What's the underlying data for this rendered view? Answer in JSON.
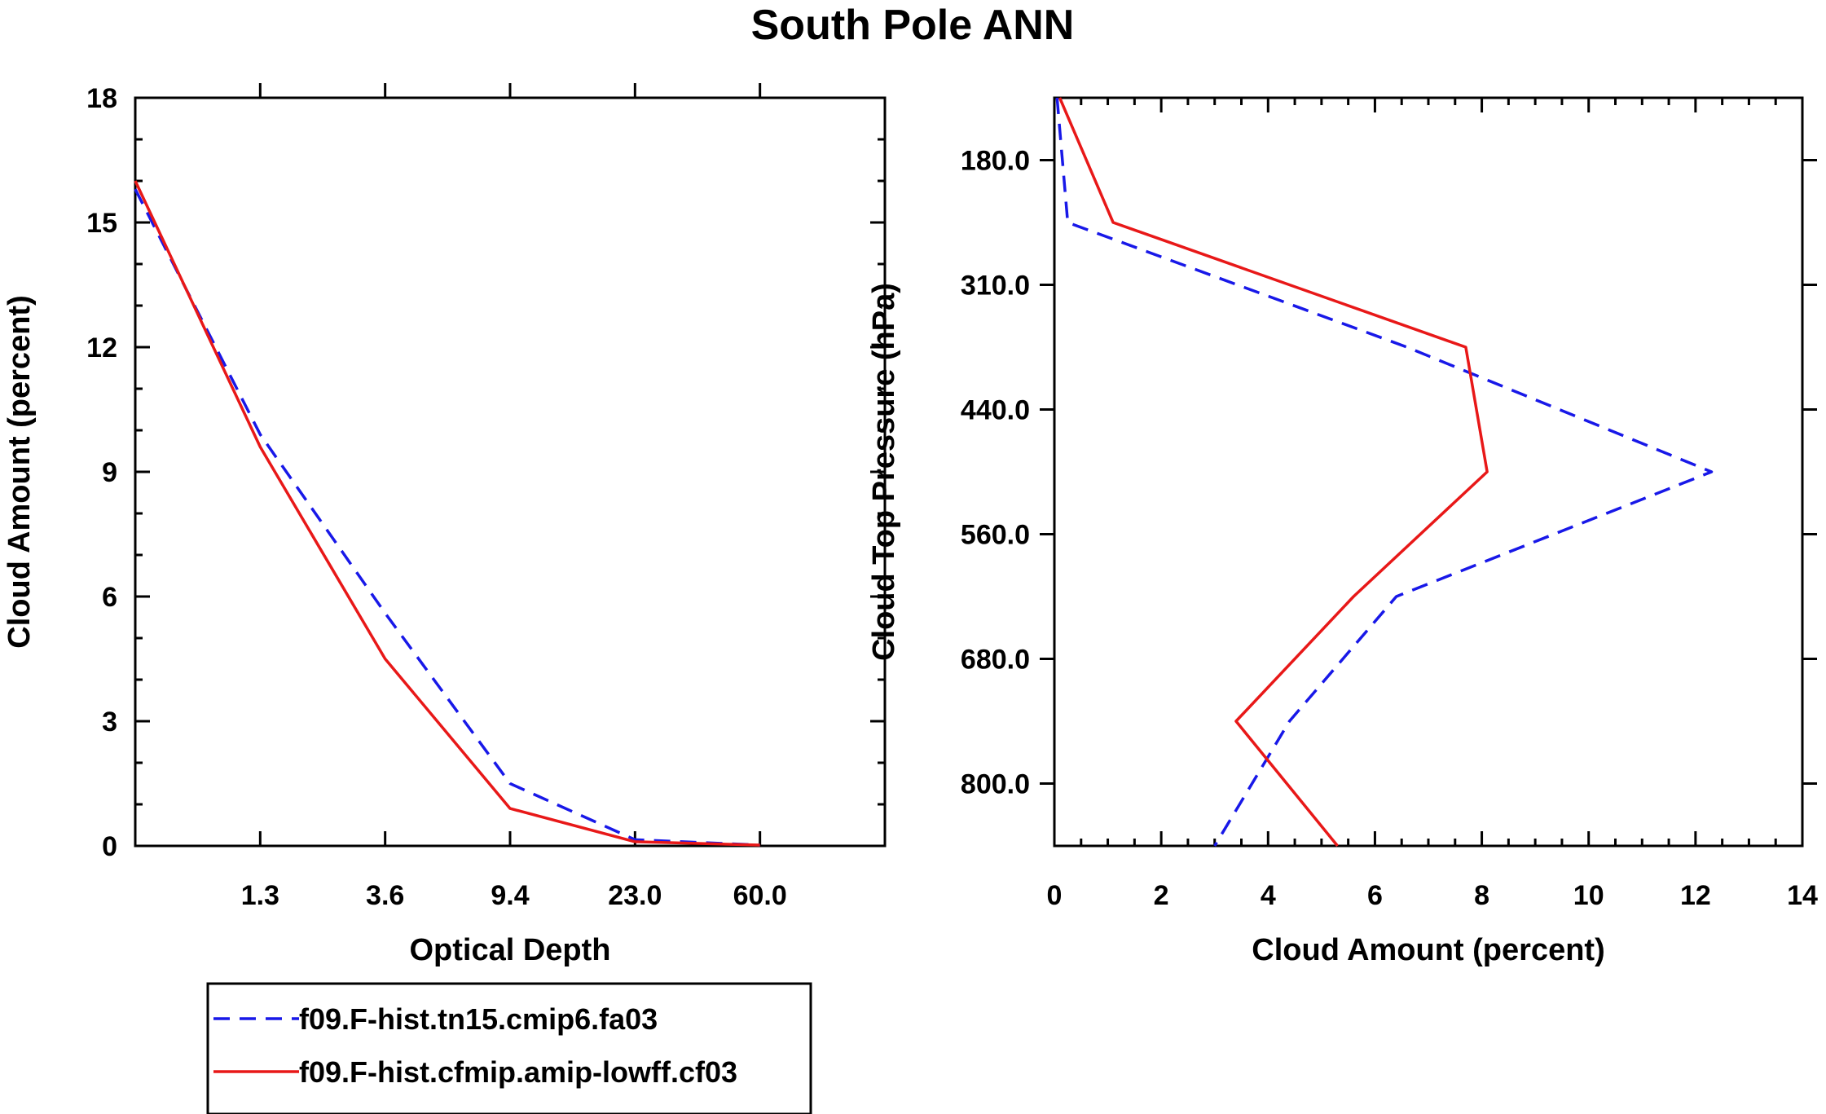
{
  "figure_title": "South Pole ANN",
  "colors": {
    "series_1": "#1818e8",
    "series_2": "#e81818"
  },
  "chart_data": [
    {
      "type": "line",
      "title": "South Pole ANN",
      "xlabel": "Optical Depth",
      "ylabel": "Cloud Amount (percent)",
      "x_tick_labels": [
        "1.3",
        "3.6",
        "9.4",
        "23.0",
        "60.0"
      ],
      "x_bin_index": [
        0,
        1,
        2,
        3,
        4,
        5,
        6
      ],
      "y_ticks": [
        "0",
        "3",
        "6",
        "9",
        "12",
        "15",
        "18"
      ],
      "ylim": [
        0,
        18
      ],
      "series": [
        {
          "name": "f09.F-hist.tn15.cmip6.fa03",
          "style": "dashed",
          "values": [
            15.8,
            9.9,
            5.6,
            1.5,
            0.15,
            0.02
          ]
        },
        {
          "name": "f09.F-hist.cfmip.amip-lowff.cf03",
          "style": "solid",
          "values": [
            16.0,
            9.6,
            4.5,
            0.9,
            0.1,
            0.02
          ]
        }
      ]
    },
    {
      "type": "line",
      "xlabel": "Cloud Amount (percent)",
      "ylabel": "Cloud Top Pressure (hPa)",
      "x_ticks": [
        "0",
        "2",
        "4",
        "6",
        "8",
        "10",
        "12",
        "14"
      ],
      "xlim": [
        0,
        14
      ],
      "y_tick_labels": [
        "180.0",
        "310.0",
        "440.0",
        "560.0",
        "680.0",
        "800.0"
      ],
      "y_levels_hPa": [
        90,
        245,
        375,
        500,
        620,
        740,
        900
      ],
      "series": [
        {
          "name": "f09.F-hist.tn15.cmip6.fa03",
          "style": "dashed",
          "values": [
            0.05,
            0.25,
            6.6,
            12.3,
            6.4,
            4.4,
            3.0
          ]
        },
        {
          "name": "f09.F-hist.cfmip.amip-lowff.cf03",
          "style": "solid",
          "values": [
            0.1,
            1.1,
            7.7,
            8.1,
            5.6,
            3.4,
            5.3
          ]
        }
      ]
    }
  ],
  "legend": {
    "items": [
      {
        "label": "f09.F-hist.tn15.cmip6.fa03",
        "style": "dashed"
      },
      {
        "label": "f09.F-hist.cfmip.amip-lowff.cf03",
        "style": "solid"
      }
    ]
  }
}
